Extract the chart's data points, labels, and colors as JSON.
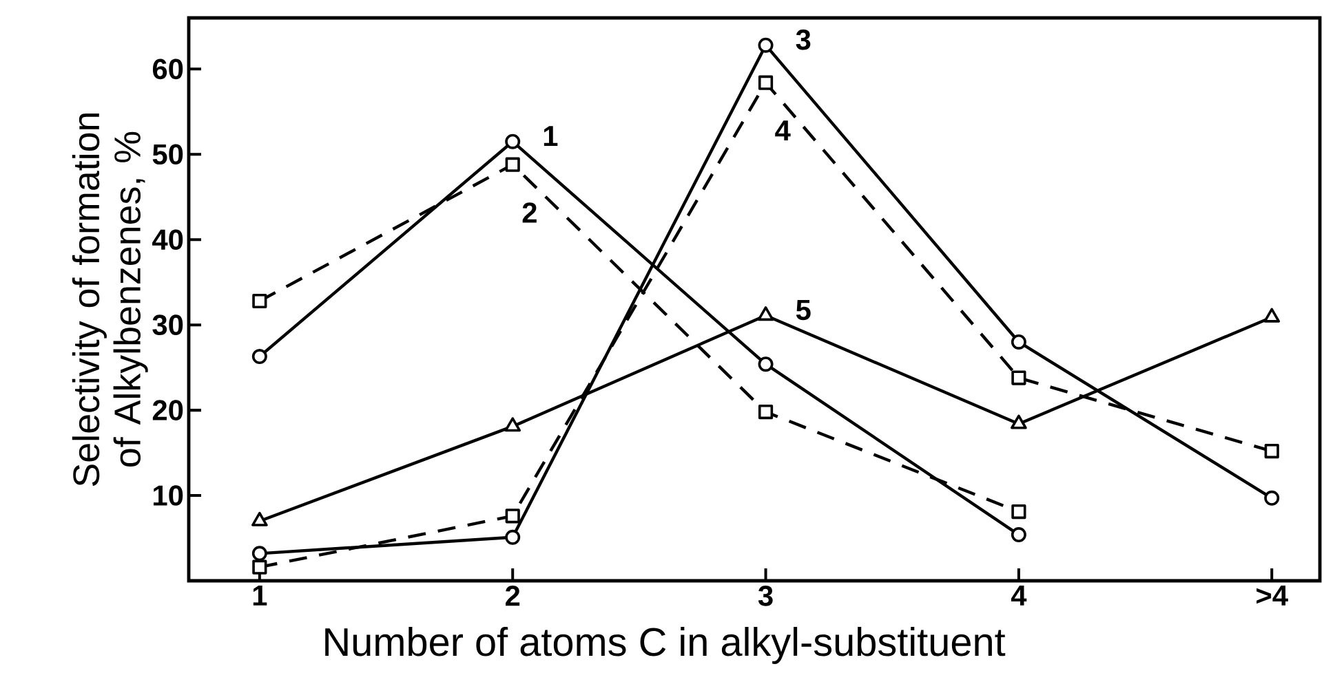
{
  "chart_data": {
    "type": "line",
    "xlabel": "Number of atoms C in alkyl-substituent",
    "ylabel": "Selectivity of formation of Alkylbenzenes, %",
    "categories": [
      "1",
      "2",
      "3",
      "4",
      ">4"
    ],
    "ylim": [
      0,
      66
    ],
    "yticks": [
      10,
      20,
      30,
      40,
      50,
      60
    ],
    "grid": false,
    "legend": false,
    "series": [
      {
        "name": "1",
        "color": "#000000",
        "marker": "circle",
        "line_style": "solid",
        "values": [
          26.3,
          51.5,
          25.4,
          5.4,
          null
        ]
      },
      {
        "name": "2",
        "color": "#000000",
        "marker": "square",
        "line_style": "dashed",
        "values": [
          32.8,
          48.8,
          19.8,
          8.1,
          null
        ]
      },
      {
        "name": "3",
        "color": "#000000",
        "marker": "circle",
        "line_style": "solid",
        "values": [
          3.2,
          5.1,
          62.8,
          28.0,
          9.7
        ]
      },
      {
        "name": "4",
        "color": "#000000",
        "marker": "square",
        "line_style": "dashed",
        "values": [
          1.6,
          7.6,
          58.4,
          23.8,
          15.2
        ]
      },
      {
        "name": "5",
        "color": "#000000",
        "marker": "triangle",
        "line_style": "solid",
        "values": [
          7.0,
          18.1,
          31.1,
          18.4,
          30.9
        ]
      }
    ]
  }
}
